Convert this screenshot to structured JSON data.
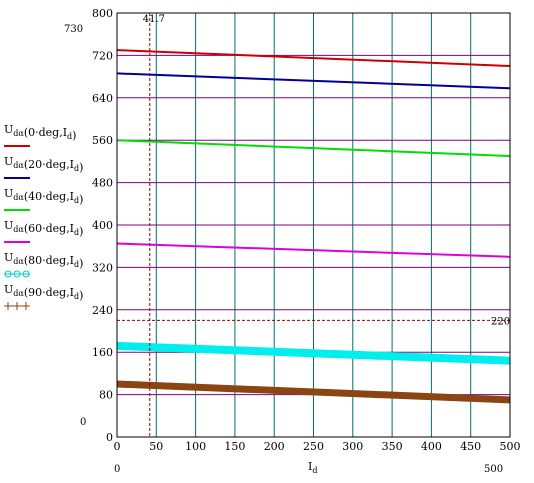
{
  "chart_data": {
    "type": "line",
    "title": "",
    "xlabel": "I_d",
    "ylabel": "",
    "xlim": [
      0,
      500
    ],
    "ylim": [
      0,
      800
    ],
    "x_ticks": [
      0,
      50,
      100,
      150,
      200,
      250,
      300,
      350,
      400,
      450,
      500
    ],
    "y_ticks": [
      0,
      80,
      160,
      240,
      320,
      400,
      480,
      560,
      640,
      720,
      800
    ],
    "x_range_labels": {
      "min": "0",
      "max": "500"
    },
    "y_range_labels": {
      "min": "0",
      "max": "730"
    },
    "grid": true,
    "legend_position": "left",
    "series": [
      {
        "name": "U_dα(0·deg, I_d)",
        "color": "#cc0000",
        "width": 2,
        "x": [
          0,
          500
        ],
        "y": [
          730,
          700
        ]
      },
      {
        "name": "U_dα(20·deg, I_d)",
        "color": "#000099",
        "width": 2,
        "x": [
          0,
          500
        ],
        "y": [
          686,
          658
        ]
      },
      {
        "name": "U_dα(40·deg, I_d)",
        "color": "#00dd00",
        "width": 2,
        "x": [
          0,
          500
        ],
        "y": [
          560,
          530
        ]
      },
      {
        "name": "U_dα(60·deg, I_d)",
        "color": "#dd00dd",
        "width": 2,
        "x": [
          0,
          500
        ],
        "y": [
          365,
          340
        ]
      },
      {
        "name": "U_dα(80·deg, I_d)",
        "color": "#00eeee",
        "width": 8,
        "x": [
          0,
          500
        ],
        "y": [
          172,
          144
        ]
      },
      {
        "name": "U_dα(90·deg, I_d)",
        "color": "#8b4513",
        "width": 7,
        "x": [
          0,
          500
        ],
        "y": [
          100,
          70
        ]
      }
    ],
    "markers": [
      {
        "type": "vertical",
        "x": 41.7,
        "label": "41.7",
        "color": "#990000"
      },
      {
        "type": "horizontal",
        "y": 220,
        "label": "220",
        "color": "#990000"
      }
    ],
    "legend_entries": [
      {
        "func": "U",
        "sub": "dα",
        "arg": "0·deg",
        "var": "I",
        "varsub": "d",
        "color": "#cc0000",
        "style": "line"
      },
      {
        "func": "U",
        "sub": "dα",
        "arg": "20·deg",
        "var": "I",
        "varsub": "d",
        "color": "#000099",
        "style": "line"
      },
      {
        "func": "U",
        "sub": "dα",
        "arg": "40·deg",
        "var": "I",
        "varsub": "d",
        "color": "#00dd00",
        "style": "line"
      },
      {
        "func": "U",
        "sub": "dα",
        "arg": "60·deg",
        "var": "I",
        "varsub": "d",
        "color": "#dd00dd",
        "style": "line"
      },
      {
        "func": "U",
        "sub": "dα",
        "arg": "80·deg",
        "var": "I",
        "varsub": "d",
        "color": "#00cccc",
        "style": "circles"
      },
      {
        "func": "U",
        "sub": "dα",
        "arg": "90·deg",
        "var": "I",
        "varsub": "d",
        "color": "#8b4513",
        "style": "crosses"
      }
    ]
  },
  "colors": {
    "x_grid": "#007070",
    "y_grid": "#800080",
    "axis": "#000000"
  }
}
